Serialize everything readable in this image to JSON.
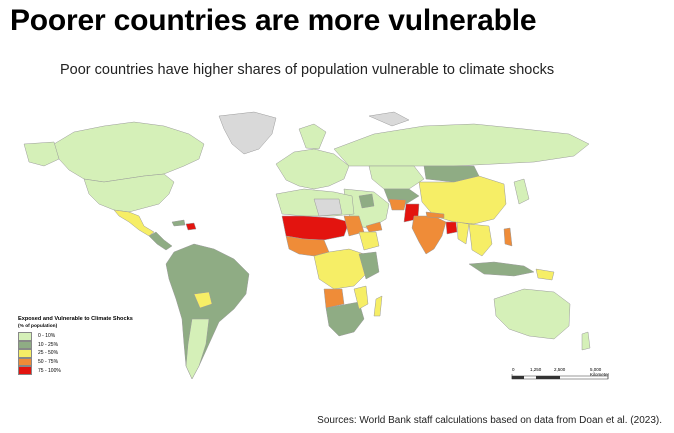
{
  "title": "Poorer countries are more vulnerable",
  "subtitle": "Poor countries have higher shares of population vulnerable to climate shocks",
  "legend": {
    "title": "Exposed and Vulnerable to Climate Shocks",
    "subtitle": "(% of population)",
    "items": [
      {
        "label": "0 - 10%",
        "color": "#d5f0b8"
      },
      {
        "label": "10 - 25%",
        "color": "#8fac84"
      },
      {
        "label": "25 - 50%",
        "color": "#f6ee66"
      },
      {
        "label": "50 - 75%",
        "color": "#ef8c38"
      },
      {
        "label": "75 - 100%",
        "color": "#e3140f"
      }
    ],
    "no_data_color": "#d9d9d9"
  },
  "scale": {
    "ticks": [
      "0",
      "1,250",
      "2,500",
      "5,000 Kilometer"
    ]
  },
  "source": "Sources: World Bank staff calculations based on data from Doan et al. (2023)."
}
